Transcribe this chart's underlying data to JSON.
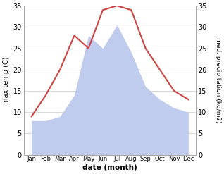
{
  "months": [
    "Jan",
    "Feb",
    "Mar",
    "Apr",
    "May",
    "Jun",
    "Jul",
    "Aug",
    "Sep",
    "Oct",
    "Nov",
    "Dec"
  ],
  "temperature": [
    9.0,
    14.0,
    20.0,
    28.0,
    25.0,
    34.0,
    35.0,
    34.0,
    25.0,
    20.0,
    15.0,
    13.0
  ],
  "precipitation": [
    8.0,
    8.0,
    9.0,
    14.0,
    28.0,
    25.0,
    30.5,
    24.0,
    16.0,
    13.0,
    11.0,
    10.0
  ],
  "temp_color": "#cc4444",
  "precip_color": "#c0ccee",
  "ylim": [
    0,
    35
  ],
  "yticks": [
    0,
    5,
    10,
    15,
    20,
    25,
    30,
    35
  ],
  "xlabel": "date (month)",
  "ylabel_left": "max temp (C)",
  "ylabel_right": "med. precipitation (kg/m2)",
  "background_color": "#ffffff"
}
